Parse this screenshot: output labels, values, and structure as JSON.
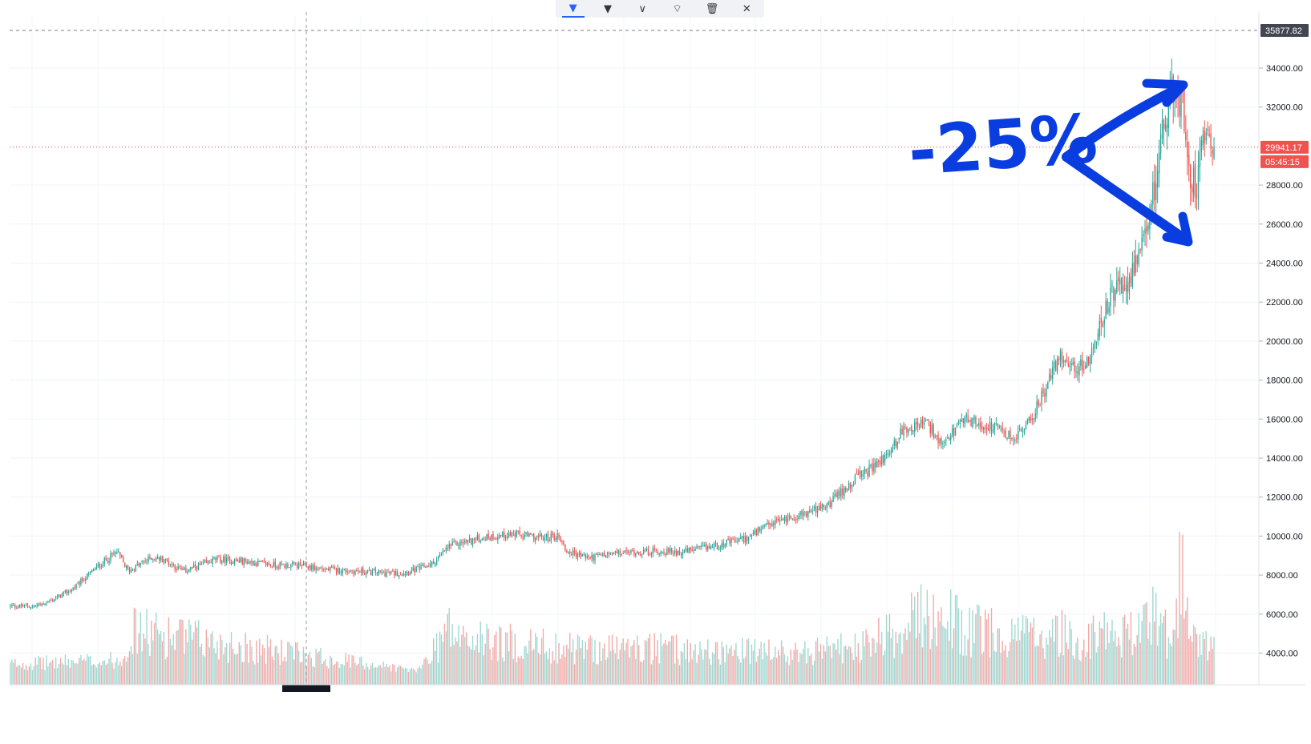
{
  "toolbar": {
    "items": [
      {
        "name": "pointer-tool-icon",
        "glyph": "▼"
      },
      {
        "name": "style-dropdown-icon",
        "glyph": "▼"
      },
      {
        "name": "settings-dropdown-icon",
        "glyph": "∨"
      },
      {
        "name": "lock-icon",
        "glyph": "⌔"
      },
      {
        "name": "trash-icon",
        "glyph": "🗑"
      },
      {
        "name": "close-icon",
        "glyph": "✕"
      }
    ]
  },
  "chart_data": {
    "type": "candlestick",
    "title": "",
    "ylim": [
      2800,
      35877.82
    ],
    "y_ticks": [
      4000,
      6000,
      8000,
      10000,
      12000,
      14000,
      16000,
      18000,
      20000,
      22000,
      24000,
      26000,
      28000,
      30000,
      32000,
      34000
    ],
    "y_tick_labels": [
      "4000.00",
      "6000.00",
      "8000.00",
      "10000.00",
      "12000.00",
      "14000.00",
      "16000.00",
      "18000.00",
      "20000.00",
      "22000.00",
      "24000.00",
      "26000.00",
      "28000.00",
      "32000.00",
      "34000.00"
    ],
    "high_price_label": "35877.82",
    "current_price_label": "29941.17",
    "countdown_label": "05:45:15",
    "colors": {
      "up": "#26a69a",
      "down": "#ef5350",
      "up_volume": "#9fd8d2",
      "down_volume": "#f2a9a7",
      "annotation": "#0a3de0"
    },
    "close_anchors": [
      [
        0,
        6400
      ],
      [
        15,
        6400
      ],
      [
        25,
        6650
      ],
      [
        40,
        7300
      ],
      [
        55,
        8400
      ],
      [
        68,
        9200
      ],
      [
        75,
        8200
      ],
      [
        90,
        8900
      ],
      [
        98,
        8800
      ],
      [
        110,
        8200
      ],
      [
        125,
        8600
      ],
      [
        130,
        8800
      ],
      [
        150,
        8700
      ],
      [
        170,
        8500
      ],
      [
        185,
        8500
      ],
      [
        200,
        8300
      ],
      [
        220,
        8200
      ],
      [
        240,
        8100
      ],
      [
        250,
        8100
      ],
      [
        260,
        8300
      ],
      [
        270,
        8600
      ],
      [
        280,
        9500
      ],
      [
        300,
        9900
      ],
      [
        320,
        10100
      ],
      [
        340,
        9900
      ],
      [
        350,
        10000
      ],
      [
        355,
        9200
      ],
      [
        370,
        8900
      ],
      [
        385,
        9100
      ],
      [
        400,
        9200
      ],
      [
        410,
        9200
      ],
      [
        430,
        9200
      ],
      [
        450,
        9500
      ],
      [
        470,
        9900
      ],
      [
        490,
        10800
      ],
      [
        500,
        11000
      ],
      [
        520,
        11500
      ],
      [
        540,
        13000
      ],
      [
        550,
        13500
      ],
      [
        560,
        14200
      ],
      [
        570,
        15500
      ],
      [
        585,
        15800
      ],
      [
        595,
        14500
      ],
      [
        600,
        15200
      ],
      [
        610,
        16000
      ],
      [
        620,
        15700
      ],
      [
        630,
        15500
      ],
      [
        640,
        15000
      ],
      [
        650,
        15800
      ],
      [
        660,
        17500
      ],
      [
        670,
        19300
      ],
      [
        680,
        18500
      ],
      [
        690,
        19200
      ],
      [
        700,
        22000
      ],
      [
        710,
        22800
      ],
      [
        720,
        24000
      ],
      [
        725,
        25500
      ],
      [
        732,
        29000
      ],
      [
        738,
        32000
      ],
      [
        743,
        33000
      ],
      [
        748,
        32000
      ],
      [
        753,
        28500
      ],
      [
        757,
        28000
      ],
      [
        760,
        30500
      ],
      [
        764,
        31500
      ],
      [
        768,
        29941
      ]
    ],
    "volume_anchors": [
      [
        0,
        3700
      ],
      [
        70,
        4000
      ],
      [
        78,
        6200
      ],
      [
        260,
        3200
      ],
      [
        280,
        6500
      ],
      [
        285,
        5600
      ],
      [
        360,
        4900
      ],
      [
        395,
        4900
      ],
      [
        500,
        4500
      ],
      [
        545,
        5000
      ],
      [
        575,
        6800
      ],
      [
        580,
        7100
      ],
      [
        595,
        7500
      ],
      [
        610,
        6300
      ],
      [
        660,
        5600
      ],
      [
        665,
        6600
      ],
      [
        680,
        5100
      ],
      [
        700,
        6200
      ],
      [
        710,
        5900
      ],
      [
        720,
        6000
      ],
      [
        725,
        7500
      ],
      [
        740,
        5800
      ],
      [
        748,
        11500
      ],
      [
        752,
        6600
      ],
      [
        760,
        5200
      ],
      [
        768,
        4700
      ]
    ],
    "notes": "close_anchors and volume_anchors are [bar_index, price] pairs in data units used to generate the candlestick series"
  },
  "annotation": {
    "text": "-25%"
  }
}
